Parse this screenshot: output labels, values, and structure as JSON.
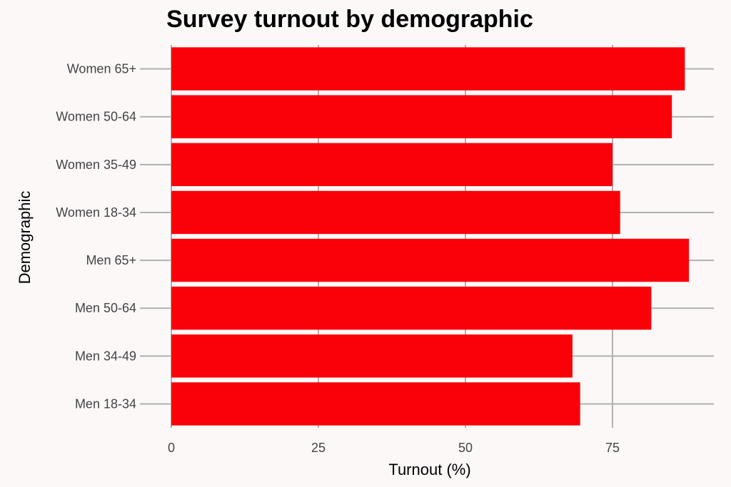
{
  "chart_data": {
    "type": "bar",
    "orientation": "horizontal",
    "title": "Survey turnout by demographic",
    "xlabel": "Turnout (%)",
    "ylabel": "Demographic",
    "categories": [
      "Women 65+",
      "Women 50-64",
      "Women 35-49",
      "Women 18-34",
      "Men 65+",
      "Men 50-64",
      "Men 34-49",
      "Men 18-34"
    ],
    "values": [
      87.3,
      85.1,
      75.0,
      76.3,
      88.0,
      81.6,
      68.2,
      69.5
    ],
    "xlim": [
      0,
      92
    ],
    "xticks": [
      0,
      25,
      50,
      75
    ],
    "grid": true,
    "bar_color": "#fa0008",
    "background": "#fcf8f8"
  }
}
